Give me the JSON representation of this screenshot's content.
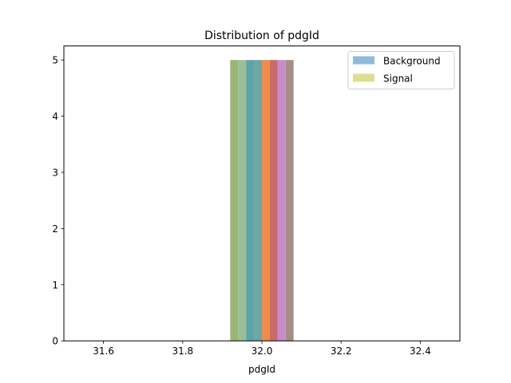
{
  "chart_data": {
    "type": "bar",
    "title": "Distribution of pdgId",
    "xlabel": "pdgId",
    "ylabel": "",
    "xlim": [
      31.5,
      32.5
    ],
    "ylim": [
      0,
      5.25
    ],
    "xticks": [
      "31.6",
      "31.8",
      "32.0",
      "32.2",
      "32.4"
    ],
    "xtick_values": [
      31.6,
      31.8,
      32.0,
      32.2,
      32.4
    ],
    "yticks": [
      "0",
      "1",
      "2",
      "3",
      "4",
      "5"
    ],
    "ytick_values": [
      0,
      1,
      2,
      3,
      4,
      5
    ],
    "grid": false,
    "legend": {
      "placement": "top-right",
      "entries": [
        {
          "name": "Background",
          "color": "#1f77b4"
        },
        {
          "name": "Signal",
          "color": "#bcbd22"
        }
      ]
    },
    "bins": [
      {
        "x0": 31.92,
        "x1": 31.94,
        "value": 5,
        "color": "#9cb574"
      },
      {
        "x0": 31.94,
        "x1": 31.96,
        "value": 5,
        "color": "#97c09a"
      },
      {
        "x0": 31.96,
        "x1": 31.98,
        "value": 5,
        "color": "#5fa3a8"
      },
      {
        "x0": 31.98,
        "x1": 32.0,
        "value": 5,
        "color": "#6fa5a4"
      },
      {
        "x0": 32.0,
        "x1": 32.02,
        "value": 5,
        "color": "#f28a4a"
      },
      {
        "x0": 32.02,
        "x1": 32.04,
        "value": 5,
        "color": "#c86b69"
      },
      {
        "x0": 32.04,
        "x1": 32.06,
        "value": 5,
        "color": "#c58dc9"
      },
      {
        "x0": 32.06,
        "x1": 32.08,
        "value": 5,
        "color": "#a38f84"
      }
    ]
  }
}
